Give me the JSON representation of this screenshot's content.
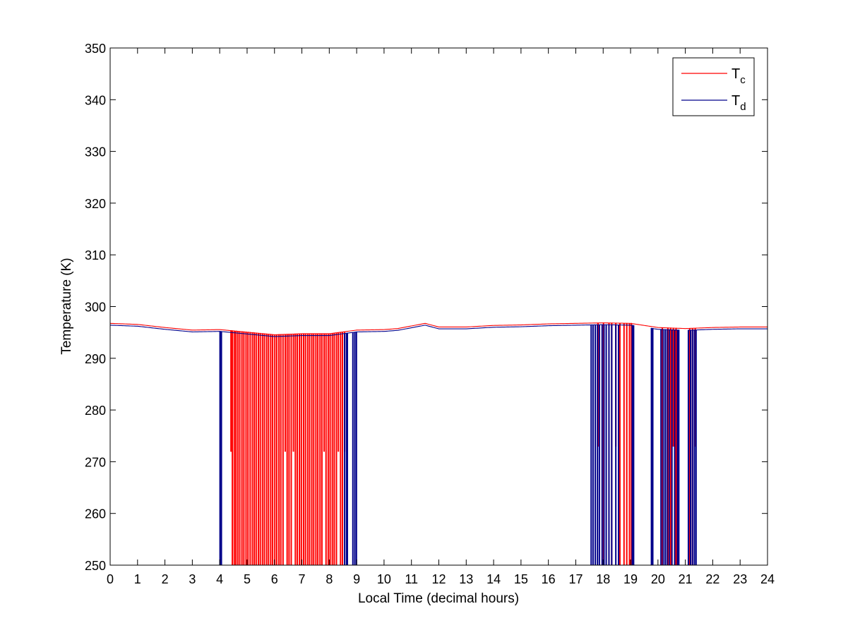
{
  "chart_data": {
    "type": "line",
    "xlabel": "Local Time (decimal hours)",
    "ylabel": "Temperature (K)",
    "xlim": [
      0,
      24
    ],
    "ylim": [
      250,
      350
    ],
    "x_ticks": [
      "0",
      "1",
      "2",
      "3",
      "4",
      "5",
      "6",
      "7",
      "8",
      "9",
      "10",
      "11",
      "12",
      "13",
      "14",
      "15",
      "16",
      "17",
      "18",
      "19",
      "20",
      "21",
      "22",
      "23",
      "24"
    ],
    "y_ticks": [
      "250",
      "260",
      "270",
      "280",
      "290",
      "300",
      "310",
      "320",
      "330",
      "340",
      "350"
    ],
    "grid": false,
    "legend_position": "top-right",
    "legend": [
      {
        "main": "T",
        "sub": "c",
        "color": "#ff0000"
      },
      {
        "main": "T",
        "sub": "d",
        "color": "#00008b"
      }
    ],
    "baseline": {
      "x": [
        0,
        1,
        2,
        3,
        4,
        5,
        6,
        7,
        8,
        9,
        10,
        10.5,
        11,
        11.5,
        12,
        13,
        14,
        15,
        16,
        17,
        18,
        19,
        20,
        21,
        22,
        23,
        24
      ],
      "y": [
        296.5,
        296.3,
        295.7,
        295.2,
        295.3,
        294.8,
        294.3,
        294.5,
        294.5,
        295.2,
        295.3,
        295.5,
        296.0,
        296.5,
        295.8,
        295.8,
        296.1,
        296.2,
        296.4,
        296.5,
        296.6,
        296.5,
        295.7,
        295.5,
        295.7,
        295.8,
        295.8
      ]
    },
    "series": [
      {
        "name": "T_c",
        "color": "#ff0000",
        "dropouts": [
          [
            4.4,
            272
          ],
          [
            4.45,
            250
          ],
          [
            4.52,
            250
          ],
          [
            4.58,
            250
          ],
          [
            4.65,
            250
          ],
          [
            4.72,
            250
          ],
          [
            4.8,
            250
          ],
          [
            4.87,
            250
          ],
          [
            4.95,
            250
          ],
          [
            5.02,
            250
          ],
          [
            5.1,
            250
          ],
          [
            5.18,
            250
          ],
          [
            5.25,
            250
          ],
          [
            5.32,
            250
          ],
          [
            5.4,
            250
          ],
          [
            5.47,
            250
          ],
          [
            5.55,
            250
          ],
          [
            5.62,
            250
          ],
          [
            5.7,
            250
          ],
          [
            5.77,
            250
          ],
          [
            5.85,
            250
          ],
          [
            5.92,
            250
          ],
          [
            6.0,
            250
          ],
          [
            6.07,
            250
          ],
          [
            6.15,
            250
          ],
          [
            6.22,
            250
          ],
          [
            6.3,
            250
          ],
          [
            6.38,
            272
          ],
          [
            6.45,
            250
          ],
          [
            6.52,
            250
          ],
          [
            6.6,
            250
          ],
          [
            6.68,
            272
          ],
          [
            6.75,
            250
          ],
          [
            6.82,
            250
          ],
          [
            6.9,
            250
          ],
          [
            6.97,
            250
          ],
          [
            7.05,
            250
          ],
          [
            7.12,
            250
          ],
          [
            7.2,
            250
          ],
          [
            7.27,
            250
          ],
          [
            7.35,
            250
          ],
          [
            7.42,
            250
          ],
          [
            7.5,
            250
          ],
          [
            7.57,
            250
          ],
          [
            7.65,
            250
          ],
          [
            7.72,
            250
          ],
          [
            7.8,
            272
          ],
          [
            7.87,
            250
          ],
          [
            7.95,
            250
          ],
          [
            8.02,
            250
          ],
          [
            8.1,
            250
          ],
          [
            8.17,
            250
          ],
          [
            8.25,
            250
          ],
          [
            8.32,
            272
          ],
          [
            8.4,
            250
          ],
          [
            8.47,
            250
          ],
          [
            8.55,
            272
          ],
          [
            17.8,
            273
          ],
          [
            18.0,
            250
          ],
          [
            18.2,
            250
          ],
          [
            18.3,
            250
          ],
          [
            18.45,
            273
          ],
          [
            18.6,
            250
          ],
          [
            18.75,
            250
          ],
          [
            18.85,
            250
          ],
          [
            18.95,
            250
          ],
          [
            19.02,
            250
          ],
          [
            20.15,
            250
          ],
          [
            20.35,
            250
          ],
          [
            20.45,
            250
          ],
          [
            20.55,
            273
          ],
          [
            20.65,
            250
          ],
          [
            21.15,
            250
          ],
          [
            21.25,
            250
          ],
          [
            21.35,
            273
          ]
        ]
      },
      {
        "name": "T_d",
        "color": "#00008b",
        "dropouts": [
          [
            4.0,
            250
          ],
          [
            4.05,
            250
          ],
          [
            8.55,
            250
          ],
          [
            8.62,
            250
          ],
          [
            8.65,
            250
          ],
          [
            8.85,
            250
          ],
          [
            8.92,
            250
          ],
          [
            8.98,
            250
          ],
          [
            17.55,
            250
          ],
          [
            17.62,
            250
          ],
          [
            17.7,
            250
          ],
          [
            17.78,
            250
          ],
          [
            17.85,
            250
          ],
          [
            17.95,
            250
          ],
          [
            18.02,
            250
          ],
          [
            18.1,
            250
          ],
          [
            18.2,
            250
          ],
          [
            18.3,
            250
          ],
          [
            18.45,
            250
          ],
          [
            18.55,
            250
          ],
          [
            19.05,
            250
          ],
          [
            19.1,
            250
          ],
          [
            19.75,
            250
          ],
          [
            19.8,
            250
          ],
          [
            20.1,
            250
          ],
          [
            20.18,
            250
          ],
          [
            20.25,
            250
          ],
          [
            20.32,
            250
          ],
          [
            20.4,
            250
          ],
          [
            20.5,
            250
          ],
          [
            20.6,
            250
          ],
          [
            20.7,
            250
          ],
          [
            20.75,
            250
          ],
          [
            21.1,
            250
          ],
          [
            21.18,
            250
          ],
          [
            21.25,
            250
          ],
          [
            21.32,
            250
          ],
          [
            21.38,
            250
          ]
        ],
        "gaps": [
          [
            19.1,
            19.75
          ],
          [
            20.75,
            21.1
          ]
        ]
      }
    ]
  }
}
